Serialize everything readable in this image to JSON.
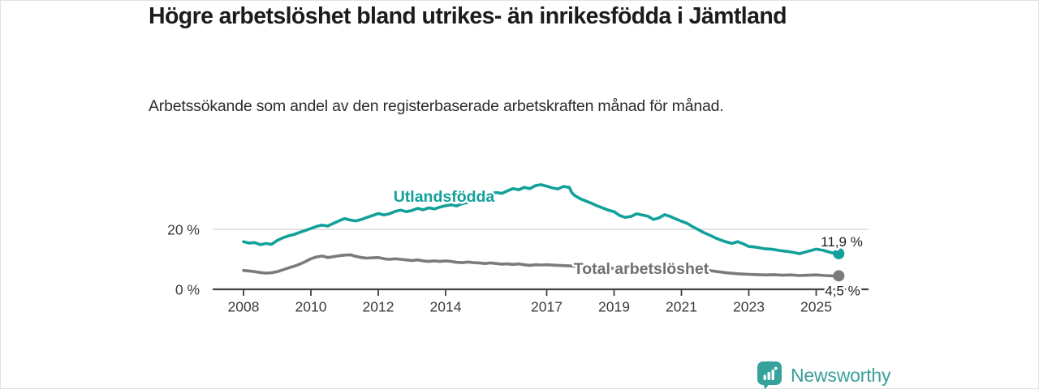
{
  "header": {
    "title": "Högre arbetslöshet bland utrikes- än inrikesfödda i Jämtland",
    "subtitle": "Arbetssökande som andel av den registerbaserade arbetskraften månad för månad."
  },
  "chart_data": {
    "type": "line",
    "title": "Högre arbetslöshet bland utrikes- än inrikesfödda i Jämtland",
    "subtitle": "Arbetssökande som andel av den registerbaserade arbetskraften månad för månad.",
    "unit": "%",
    "grid": "single horizontal gridline at 20 %",
    "legend_position": "inline labels on lines",
    "x_axis": {
      "ticks": [
        2008,
        2010,
        2012,
        2014,
        2017,
        2019,
        2021,
        2023,
        2025
      ],
      "range_years": [
        2007.1,
        2026.6
      ]
    },
    "y_axis": {
      "tick_labels": [
        "0 %",
        "20 %"
      ],
      "tick_values": [
        0,
        20
      ],
      "range": [
        0,
        37
      ],
      "gridline_at": 20
    },
    "series": [
      {
        "name": "Utlandsfödda",
        "color": "#12a09a",
        "end_label": "11,9 %",
        "end_value": 11.9,
        "points": [
          [
            2008.0,
            15.9
          ],
          [
            2008.17,
            15.4
          ],
          [
            2008.33,
            15.6
          ],
          [
            2008.5,
            14.9
          ],
          [
            2008.67,
            15.3
          ],
          [
            2008.83,
            15.0
          ],
          [
            2009.0,
            16.3
          ],
          [
            2009.17,
            17.2
          ],
          [
            2009.33,
            17.8
          ],
          [
            2009.5,
            18.3
          ],
          [
            2009.67,
            19.0
          ],
          [
            2009.83,
            19.6
          ],
          [
            2010.0,
            20.3
          ],
          [
            2010.17,
            21.0
          ],
          [
            2010.33,
            21.4
          ],
          [
            2010.5,
            21.1
          ],
          [
            2010.67,
            22.0
          ],
          [
            2010.83,
            22.8
          ],
          [
            2011.0,
            23.6
          ],
          [
            2011.17,
            23.1
          ],
          [
            2011.33,
            22.8
          ],
          [
            2011.5,
            23.3
          ],
          [
            2011.67,
            24.0
          ],
          [
            2011.83,
            24.6
          ],
          [
            2012.0,
            25.3
          ],
          [
            2012.17,
            24.8
          ],
          [
            2012.33,
            25.2
          ],
          [
            2012.5,
            26.0
          ],
          [
            2012.67,
            26.4
          ],
          [
            2012.83,
            25.9
          ],
          [
            2013.0,
            26.3
          ],
          [
            2013.17,
            27.0
          ],
          [
            2013.33,
            26.5
          ],
          [
            2013.5,
            27.2
          ],
          [
            2013.67,
            26.8
          ],
          [
            2013.83,
            27.4
          ],
          [
            2014.0,
            27.9
          ],
          [
            2014.17,
            28.2
          ],
          [
            2014.33,
            27.8
          ],
          [
            2014.5,
            28.6
          ],
          [
            2014.67,
            29.0
          ],
          [
            2014.83,
            29.7
          ],
          [
            2015.0,
            30.6
          ],
          [
            2015.17,
            31.2
          ],
          [
            2015.33,
            31.8
          ],
          [
            2015.5,
            32.3
          ],
          [
            2015.67,
            32.0
          ],
          [
            2015.83,
            32.8
          ],
          [
            2016.0,
            33.6
          ],
          [
            2016.17,
            33.2
          ],
          [
            2016.33,
            34.0
          ],
          [
            2016.5,
            33.6
          ],
          [
            2016.67,
            34.6
          ],
          [
            2016.83,
            34.9
          ],
          [
            2017.0,
            34.4
          ],
          [
            2017.17,
            33.8
          ],
          [
            2017.33,
            33.5
          ],
          [
            2017.5,
            34.3
          ],
          [
            2017.67,
            34.0
          ],
          [
            2017.75,
            32.2
          ],
          [
            2017.83,
            31.3
          ],
          [
            2018.0,
            30.2
          ],
          [
            2018.17,
            29.4
          ],
          [
            2018.33,
            28.7
          ],
          [
            2018.5,
            27.8
          ],
          [
            2018.67,
            27.1
          ],
          [
            2018.83,
            26.4
          ],
          [
            2019.0,
            25.9
          ],
          [
            2019.17,
            24.6
          ],
          [
            2019.33,
            24.0
          ],
          [
            2019.5,
            24.3
          ],
          [
            2019.67,
            25.2
          ],
          [
            2019.83,
            24.8
          ],
          [
            2020.0,
            24.4
          ],
          [
            2020.17,
            23.3
          ],
          [
            2020.33,
            23.8
          ],
          [
            2020.5,
            24.9
          ],
          [
            2020.67,
            24.3
          ],
          [
            2020.83,
            23.5
          ],
          [
            2021.0,
            22.7
          ],
          [
            2021.17,
            22.0
          ],
          [
            2021.33,
            20.9
          ],
          [
            2021.5,
            19.9
          ],
          [
            2021.67,
            18.9
          ],
          [
            2021.83,
            18.1
          ],
          [
            2022.0,
            17.2
          ],
          [
            2022.17,
            16.4
          ],
          [
            2022.33,
            15.8
          ],
          [
            2022.5,
            15.3
          ],
          [
            2022.67,
            15.9
          ],
          [
            2022.83,
            15.2
          ],
          [
            2023.0,
            14.3
          ],
          [
            2023.17,
            14.1
          ],
          [
            2023.33,
            13.8
          ],
          [
            2023.5,
            13.5
          ],
          [
            2023.67,
            13.4
          ],
          [
            2023.83,
            13.1
          ],
          [
            2024.0,
            12.8
          ],
          [
            2024.17,
            12.6
          ],
          [
            2024.33,
            12.3
          ],
          [
            2024.5,
            11.9
          ],
          [
            2024.67,
            12.4
          ],
          [
            2024.83,
            12.9
          ],
          [
            2025.0,
            13.4
          ],
          [
            2025.17,
            13.1
          ],
          [
            2025.33,
            12.6
          ],
          [
            2025.5,
            12.1
          ],
          [
            2025.67,
            11.9
          ]
        ]
      },
      {
        "name": "Total arbetslöshet",
        "color": "#7b7b7b",
        "end_label": "4,5 %",
        "end_value": 4.5,
        "points": [
          [
            2008.0,
            6.3
          ],
          [
            2008.17,
            6.1
          ],
          [
            2008.33,
            5.9
          ],
          [
            2008.5,
            5.6
          ],
          [
            2008.67,
            5.4
          ],
          [
            2008.83,
            5.5
          ],
          [
            2009.0,
            5.9
          ],
          [
            2009.17,
            6.5
          ],
          [
            2009.33,
            7.1
          ],
          [
            2009.5,
            7.7
          ],
          [
            2009.67,
            8.4
          ],
          [
            2009.83,
            9.2
          ],
          [
            2010.0,
            10.2
          ],
          [
            2010.17,
            10.8
          ],
          [
            2010.33,
            11.1
          ],
          [
            2010.5,
            10.6
          ],
          [
            2010.67,
            10.9
          ],
          [
            2010.83,
            11.2
          ],
          [
            2011.0,
            11.4
          ],
          [
            2011.17,
            11.5
          ],
          [
            2011.33,
            11.0
          ],
          [
            2011.5,
            10.6
          ],
          [
            2011.67,
            10.4
          ],
          [
            2011.83,
            10.5
          ],
          [
            2012.0,
            10.6
          ],
          [
            2012.17,
            10.2
          ],
          [
            2012.33,
            10.0
          ],
          [
            2012.5,
            10.2
          ],
          [
            2012.67,
            10.0
          ],
          [
            2012.83,
            9.8
          ],
          [
            2013.0,
            9.6
          ],
          [
            2013.17,
            9.8
          ],
          [
            2013.33,
            9.5
          ],
          [
            2013.5,
            9.3
          ],
          [
            2013.67,
            9.5
          ],
          [
            2013.83,
            9.3
          ],
          [
            2014.0,
            9.5
          ],
          [
            2014.17,
            9.3
          ],
          [
            2014.33,
            9.0
          ],
          [
            2014.5,
            8.9
          ],
          [
            2014.67,
            9.1
          ],
          [
            2014.83,
            8.9
          ],
          [
            2015.0,
            8.8
          ],
          [
            2015.17,
            8.6
          ],
          [
            2015.33,
            8.8
          ],
          [
            2015.5,
            8.6
          ],
          [
            2015.67,
            8.4
          ],
          [
            2015.83,
            8.5
          ],
          [
            2016.0,
            8.3
          ],
          [
            2016.17,
            8.5
          ],
          [
            2016.33,
            8.2
          ],
          [
            2016.5,
            8.0
          ],
          [
            2016.67,
            8.2
          ],
          [
            2016.83,
            8.1
          ],
          [
            2017.0,
            8.2
          ],
          [
            2017.33,
            8.0
          ],
          [
            2017.67,
            7.8
          ],
          [
            2018.0,
            7.6
          ],
          [
            2018.33,
            7.4
          ],
          [
            2018.67,
            7.2
          ],
          [
            2019.0,
            7.0
          ],
          [
            2019.33,
            6.9
          ],
          [
            2019.67,
            7.0
          ],
          [
            2020.0,
            7.3
          ],
          [
            2020.33,
            7.6
          ],
          [
            2020.67,
            7.4
          ],
          [
            2021.0,
            7.2
          ],
          [
            2021.33,
            6.9
          ],
          [
            2021.67,
            6.5
          ],
          [
            2022.0,
            6.0
          ],
          [
            2022.33,
            5.5
          ],
          [
            2022.67,
            5.2
          ],
          [
            2023.0,
            5.0
          ],
          [
            2023.25,
            4.9
          ],
          [
            2023.5,
            4.8
          ],
          [
            2023.75,
            4.9
          ],
          [
            2024.0,
            4.7
          ],
          [
            2024.25,
            4.8
          ],
          [
            2024.5,
            4.6
          ],
          [
            2024.75,
            4.7
          ],
          [
            2025.0,
            4.8
          ],
          [
            2025.25,
            4.6
          ],
          [
            2025.5,
            4.5
          ],
          [
            2025.67,
            4.5
          ]
        ]
      }
    ]
  },
  "footer": {
    "brand": "Newsworthy",
    "brand_color": "#3a9f99",
    "logo_icon": "bar-chart-speech-bubble",
    "logo_icon_color": "#35a39c"
  }
}
